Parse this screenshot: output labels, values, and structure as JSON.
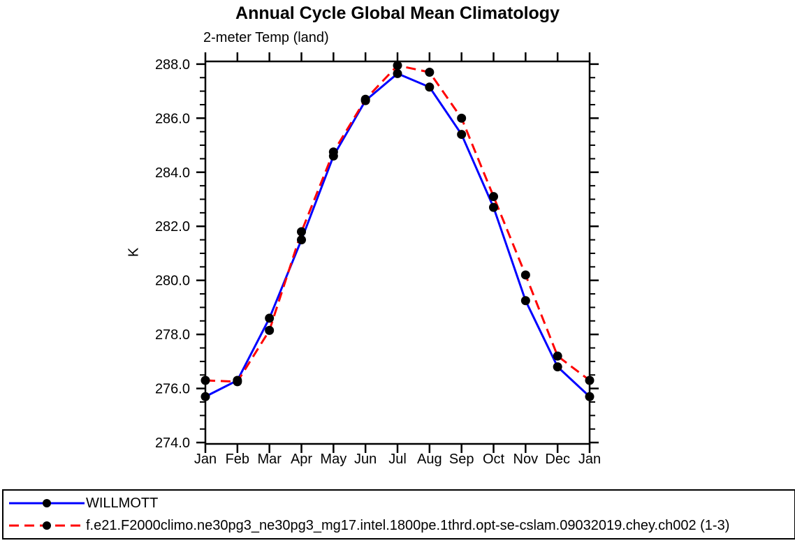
{
  "header": {
    "title": "Annual Cycle Global Mean Climatology",
    "subtitle": "2-meter Temp (land)"
  },
  "chart_data": {
    "type": "line",
    "title": "Annual Cycle Global Mean Climatology",
    "subtitle": "2-meter Temp (land)",
    "xlabel": "",
    "ylabel": "K",
    "categories": [
      "Jan",
      "Feb",
      "Mar",
      "Apr",
      "May",
      "Jun",
      "Jul",
      "Aug",
      "Sep",
      "Oct",
      "Nov",
      "Dec",
      "Jan"
    ],
    "ylim": [
      273.95,
      288.1
    ],
    "yticks_major": [
      274.0,
      276.0,
      278.0,
      280.0,
      282.0,
      284.0,
      286.0,
      288.0
    ],
    "yminor_step": 0.5,
    "grid": false,
    "legend_position": "bottom-box",
    "axis_color": "#000000",
    "marker": {
      "shape": "circle",
      "color": "#000000",
      "radius": 6.5
    },
    "series": [
      {
        "name": "WILLMOTT",
        "color": "#0000FF",
        "style": "solid",
        "values": [
          275.7,
          276.3,
          278.6,
          281.5,
          284.6,
          286.65,
          287.65,
          287.15,
          285.4,
          282.7,
          279.25,
          276.8,
          275.7
        ]
      },
      {
        "name": "f.e21.F2000climo.ne30pg3_ne30pg3_mg17.intel.1800pe.1thrd.opt-se-cslam.09032019.chey.ch002 (1-3)",
        "color": "#FF0000",
        "style": "dashed",
        "values": [
          276.3,
          276.25,
          278.15,
          281.8,
          284.75,
          286.7,
          287.95,
          287.7,
          286.0,
          283.1,
          280.2,
          277.2,
          276.3
        ]
      }
    ]
  }
}
